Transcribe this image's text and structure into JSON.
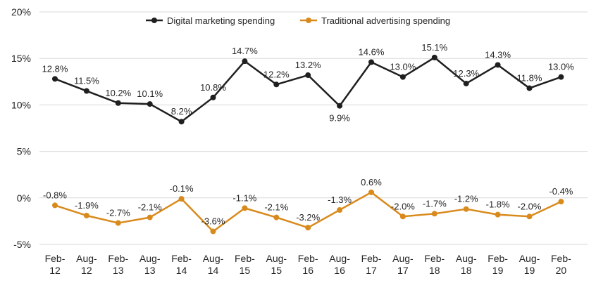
{
  "chart_data": {
    "type": "line",
    "title": "",
    "xlabel": "",
    "ylabel": "",
    "ylim": [
      -5,
      20
    ],
    "yticks": [
      "20%",
      "15%",
      "10%",
      "5%",
      "0%",
      "-5%"
    ],
    "ytick_values": [
      20,
      15,
      10,
      5,
      0,
      -5
    ],
    "grid": true,
    "legend_position": "top",
    "categories": [
      [
        "Feb-",
        "12"
      ],
      [
        "Aug-",
        "12"
      ],
      [
        "Feb-",
        "13"
      ],
      [
        "Aug-",
        "13"
      ],
      [
        "Feb-",
        "14"
      ],
      [
        "Aug-",
        "14"
      ],
      [
        "Feb-",
        "15"
      ],
      [
        "Aug-",
        "15"
      ],
      [
        "Feb-",
        "16"
      ],
      [
        "Aug-",
        "16"
      ],
      [
        "Feb-",
        "17"
      ],
      [
        "Aug-",
        "17"
      ],
      [
        "Feb-",
        "18"
      ],
      [
        "Aug-",
        "18"
      ],
      [
        "Feb-",
        "19"
      ],
      [
        "Aug-",
        "19"
      ],
      [
        "Feb-",
        "20"
      ]
    ],
    "series": [
      {
        "name": "Digital marketing spending",
        "color": "#1f1f1f",
        "values": [
          12.8,
          11.5,
          10.2,
          10.1,
          8.2,
          10.8,
          14.7,
          12.2,
          13.2,
          9.9,
          14.6,
          13.0,
          15.1,
          12.3,
          14.3,
          11.8,
          13.0
        ],
        "labels": [
          "12.8%",
          "11.5%",
          "10.2%",
          "10.1%",
          "8.2%",
          "10.8%",
          "14.7%",
          "12.2%",
          "13.2%",
          "9.9%",
          "14.6%",
          "13.0%",
          "15.1%",
          "12.3%",
          "14.3%",
          "11.8%",
          "13.0%"
        ],
        "label_side": [
          "above",
          "above",
          "above",
          "above",
          "above",
          "above",
          "above",
          "above",
          "above",
          "below",
          "above",
          "above",
          "above",
          "above",
          "above",
          "above",
          "above"
        ]
      },
      {
        "name": "Traditional advertising spending",
        "color": "#d98a1c",
        "values": [
          -0.8,
          -1.9,
          -2.7,
          -2.1,
          -0.1,
          -3.6,
          -1.1,
          -2.1,
          -3.2,
          -1.3,
          0.6,
          -2.0,
          -1.7,
          -1.2,
          -1.8,
          -2.0,
          -0.4
        ],
        "labels": [
          "-0.8%",
          "-1.9%",
          "-2.7%",
          "-2.1%",
          "-0.1%",
          "-3.6%",
          "-1.1%",
          "-2.1%",
          "-3.2%",
          "-1.3%",
          "0.6%",
          "-2.0%",
          "-1.7%",
          "-1.2%",
          "-1.8%",
          "-2.0%",
          "-0.4%"
        ],
        "label_side": [
          "above",
          "above",
          "above",
          "above",
          "above",
          "above",
          "above",
          "above",
          "above",
          "above",
          "above",
          "above",
          "above",
          "above",
          "above",
          "above",
          "above"
        ]
      }
    ]
  }
}
